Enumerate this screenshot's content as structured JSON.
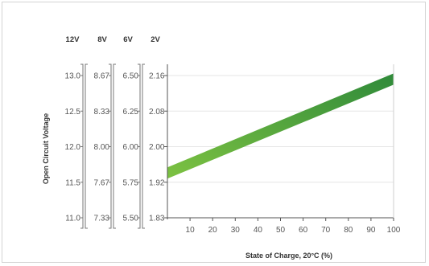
{
  "chart_data": {
    "type": "line",
    "xlabel": "State of Charge, 20°C (%)",
    "ylabel": "Open Circuit Voltage",
    "x_ticks": [
      "10",
      "20",
      "30",
      "40",
      "50",
      "60",
      "70",
      "80",
      "90",
      "100"
    ],
    "xlim": [
      0,
      100
    ],
    "voltage_columns": [
      {
        "header": "12V",
        "ticks": [
          "13.0",
          "12.5",
          "12.0",
          "11.5",
          "11.0"
        ]
      },
      {
        "header": "8V",
        "ticks": [
          "8.67",
          "8.33",
          "8.00",
          "7.67",
          "7.33"
        ]
      },
      {
        "header": "6V",
        "ticks": [
          "6.50",
          "6.25",
          "6.00",
          "5.75",
          "5.50"
        ]
      },
      {
        "header": "2V",
        "ticks": [
          "2.16",
          "2.08",
          "2.00",
          "1.92",
          "1.83"
        ]
      }
    ],
    "ylim_12v": [
      11.0,
      13.0
    ],
    "series": [
      {
        "x": [
          0,
          100
        ],
        "y": [
          11.63,
          12.95
        ]
      }
    ],
    "grid": "horizontal",
    "band_colors": [
      "#7dc242",
      "#2f8a3a"
    ]
  }
}
